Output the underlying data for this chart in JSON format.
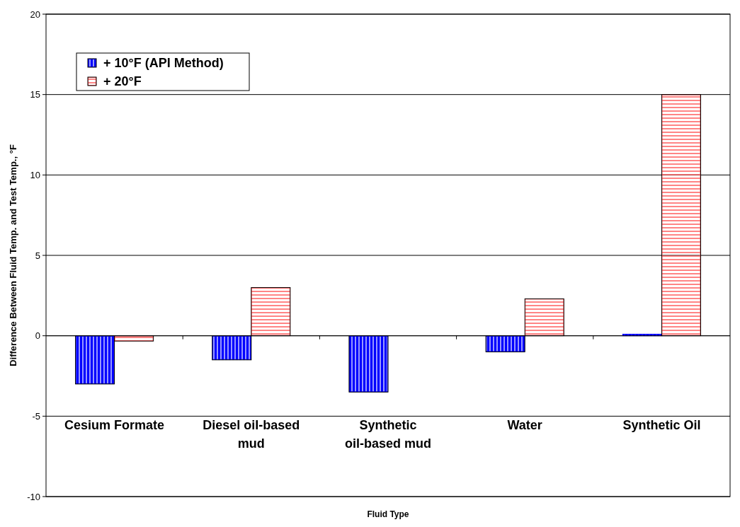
{
  "chart_data": {
    "type": "bar",
    "xlabel": "Fluid Type",
    "ylabel": "Difference Between Fluid Temp. and Test Temp., °F",
    "categories": [
      "Cesium Formate",
      "Diesel oil-based mud",
      "Synthetic oil-based mud",
      "Water",
      "Synthetic Oil"
    ],
    "series": [
      {
        "name": "+ 10°F (API Method)",
        "color": "#0000ff",
        "values": [
          -3.0,
          -1.5,
          -3.5,
          -1.0,
          0.1
        ]
      },
      {
        "name": "+ 20°F",
        "color": "#ff5050",
        "values": [
          -0.33,
          3.0,
          null,
          2.3,
          15
        ]
      }
    ],
    "ylim": [
      -10,
      20
    ],
    "yticks": [
      -10,
      -5,
      0,
      5,
      10,
      15,
      20
    ],
    "grid": "y",
    "legend": "top left"
  }
}
